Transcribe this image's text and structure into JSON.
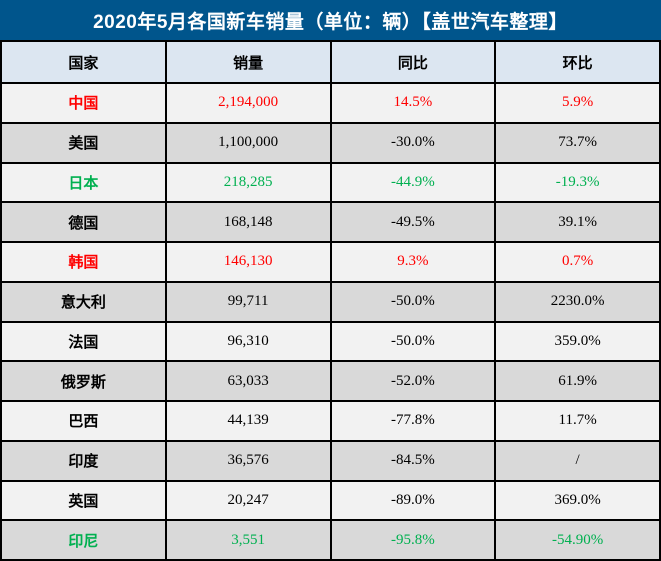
{
  "title_bar": {
    "title": "2020年5月各国新车销量（单位：辆）【盖世汽车整理】"
  },
  "table": {
    "columns": [
      "国家",
      "销量",
      "同比",
      "环比"
    ],
    "rows": [
      {
        "country": "中国",
        "sales": "2,194,000",
        "yoy": "14.5%",
        "mom": "5.9%",
        "color": "red"
      },
      {
        "country": "美国",
        "sales": "1,100,000",
        "yoy": "-30.0%",
        "mom": "73.7%",
        "color": "black"
      },
      {
        "country": "日本",
        "sales": "218,285",
        "yoy": "-44.9%",
        "mom": "-19.3%",
        "color": "green"
      },
      {
        "country": "德国",
        "sales": "168,148",
        "yoy": "-49.5%",
        "mom": "39.1%",
        "color": "black"
      },
      {
        "country": "韩国",
        "sales": "146,130",
        "yoy": "9.3%",
        "mom": "0.7%",
        "color": "red"
      },
      {
        "country": "意大利",
        "sales": "99,711",
        "yoy": "-50.0%",
        "mom": "2230.0%",
        "color": "black"
      },
      {
        "country": "法国",
        "sales": "96,310",
        "yoy": "-50.0%",
        "mom": "359.0%",
        "color": "black"
      },
      {
        "country": "俄罗斯",
        "sales": "63,033",
        "yoy": "-52.0%",
        "mom": "61.9%",
        "color": "black"
      },
      {
        "country": "巴西",
        "sales": "44,139",
        "yoy": "-77.8%",
        "mom": "11.7%",
        "color": "black"
      },
      {
        "country": "印度",
        "sales": "36,576",
        "yoy": "-84.5%",
        "mom": "/",
        "color": "black"
      },
      {
        "country": "英国",
        "sales": "20,247",
        "yoy": "-89.0%",
        "mom": "369.0%",
        "color": "black"
      },
      {
        "country": "印尼",
        "sales": "3,551",
        "yoy": "-95.8%",
        "mom": "-54.90%",
        "color": "green"
      }
    ]
  },
  "colors": {
    "title_bg": "#00558C",
    "title_text": "#FFFFFF",
    "header_bg": "#DCE6F1",
    "row_light": "#F2F2F2",
    "row_dark": "#D9D9D9",
    "text_red": "#FF0000",
    "text_green": "#00B050",
    "text_black": "#000000",
    "grid_border": "#000000"
  },
  "chart_data": {
    "type": "table",
    "title": "2020年5月各国新车销量（单位：辆）【盖世汽车整理】",
    "columns": [
      "国家",
      "销量",
      "同比",
      "环比"
    ],
    "rows": [
      [
        "中国",
        "2,194,000",
        "14.5%",
        "5.9%"
      ],
      [
        "美国",
        "1,100,000",
        "-30.0%",
        "73.7%"
      ],
      [
        "日本",
        "218,285",
        "-44.9%",
        "-19.3%"
      ],
      [
        "德国",
        "168,148",
        "-49.5%",
        "39.1%"
      ],
      [
        "韩国",
        "146,130",
        "9.3%",
        "0.7%"
      ],
      [
        "意大利",
        "99,711",
        "-50.0%",
        "2230.0%"
      ],
      [
        "法国",
        "96,310",
        "-50.0%",
        "359.0%"
      ],
      [
        "俄罗斯",
        "63,033",
        "-52.0%",
        "61.9%"
      ],
      [
        "巴西",
        "44,139",
        "-77.8%",
        "11.7%"
      ],
      [
        "印度",
        "36,576",
        "-84.5%",
        "/"
      ],
      [
        "英国",
        "20,247",
        "-89.0%",
        "369.0%"
      ],
      [
        "印尼",
        "3,551",
        "-95.8%",
        "-54.90%"
      ]
    ],
    "sales_values": [
      2194000,
      1100000,
      218285,
      168148,
      146130,
      99711,
      96310,
      63033,
      44139,
      36576,
      20247,
      3551
    ],
    "yoy_percent": [
      14.5,
      -30.0,
      -44.9,
      -49.5,
      9.3,
      -50.0,
      -50.0,
      -52.0,
      -77.8,
      -84.5,
      -89.0,
      -95.8
    ],
    "mom_percent": [
      5.9,
      73.7,
      -19.3,
      39.1,
      0.7,
      2230.0,
      359.0,
      61.9,
      11.7,
      null,
      369.0,
      -54.9
    ]
  }
}
